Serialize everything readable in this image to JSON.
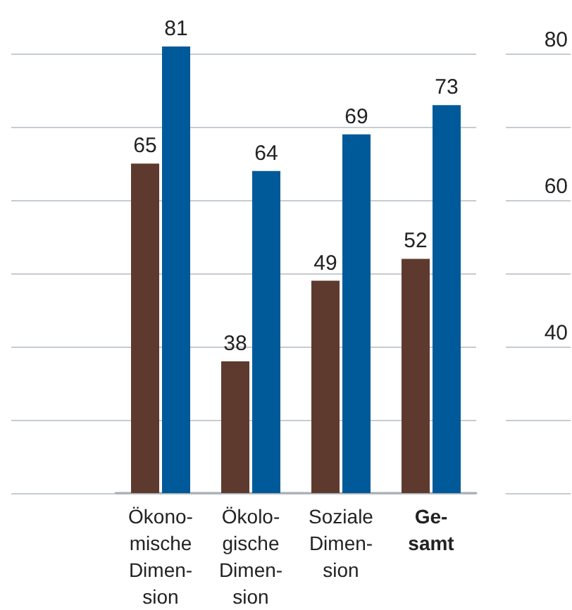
{
  "chart_data": {
    "type": "bar",
    "categories": [
      "Ökono-\nmische\nDimen-\nsion",
      "Ökolo-\ngische\nDimen-\nsion",
      "Soziale\nDimen-\nsion",
      "Ge-\nsamt"
    ],
    "series": [
      {
        "color": "#5e3a2e",
        "values": [
          65,
          38,
          49,
          52
        ]
      },
      {
        "color": "#005a9a",
        "values": [
          81,
          64,
          69,
          73
        ]
      }
    ],
    "ylim": [
      20,
      81
    ],
    "yticks": [
      {
        "value": 20,
        "label": null
      },
      {
        "value": 30,
        "label": null
      },
      40,
      {
        "value": 50,
        "label": null
      },
      60,
      {
        "value": 70,
        "label": null
      },
      80
    ],
    "grid": "y",
    "data_labels": true
  }
}
